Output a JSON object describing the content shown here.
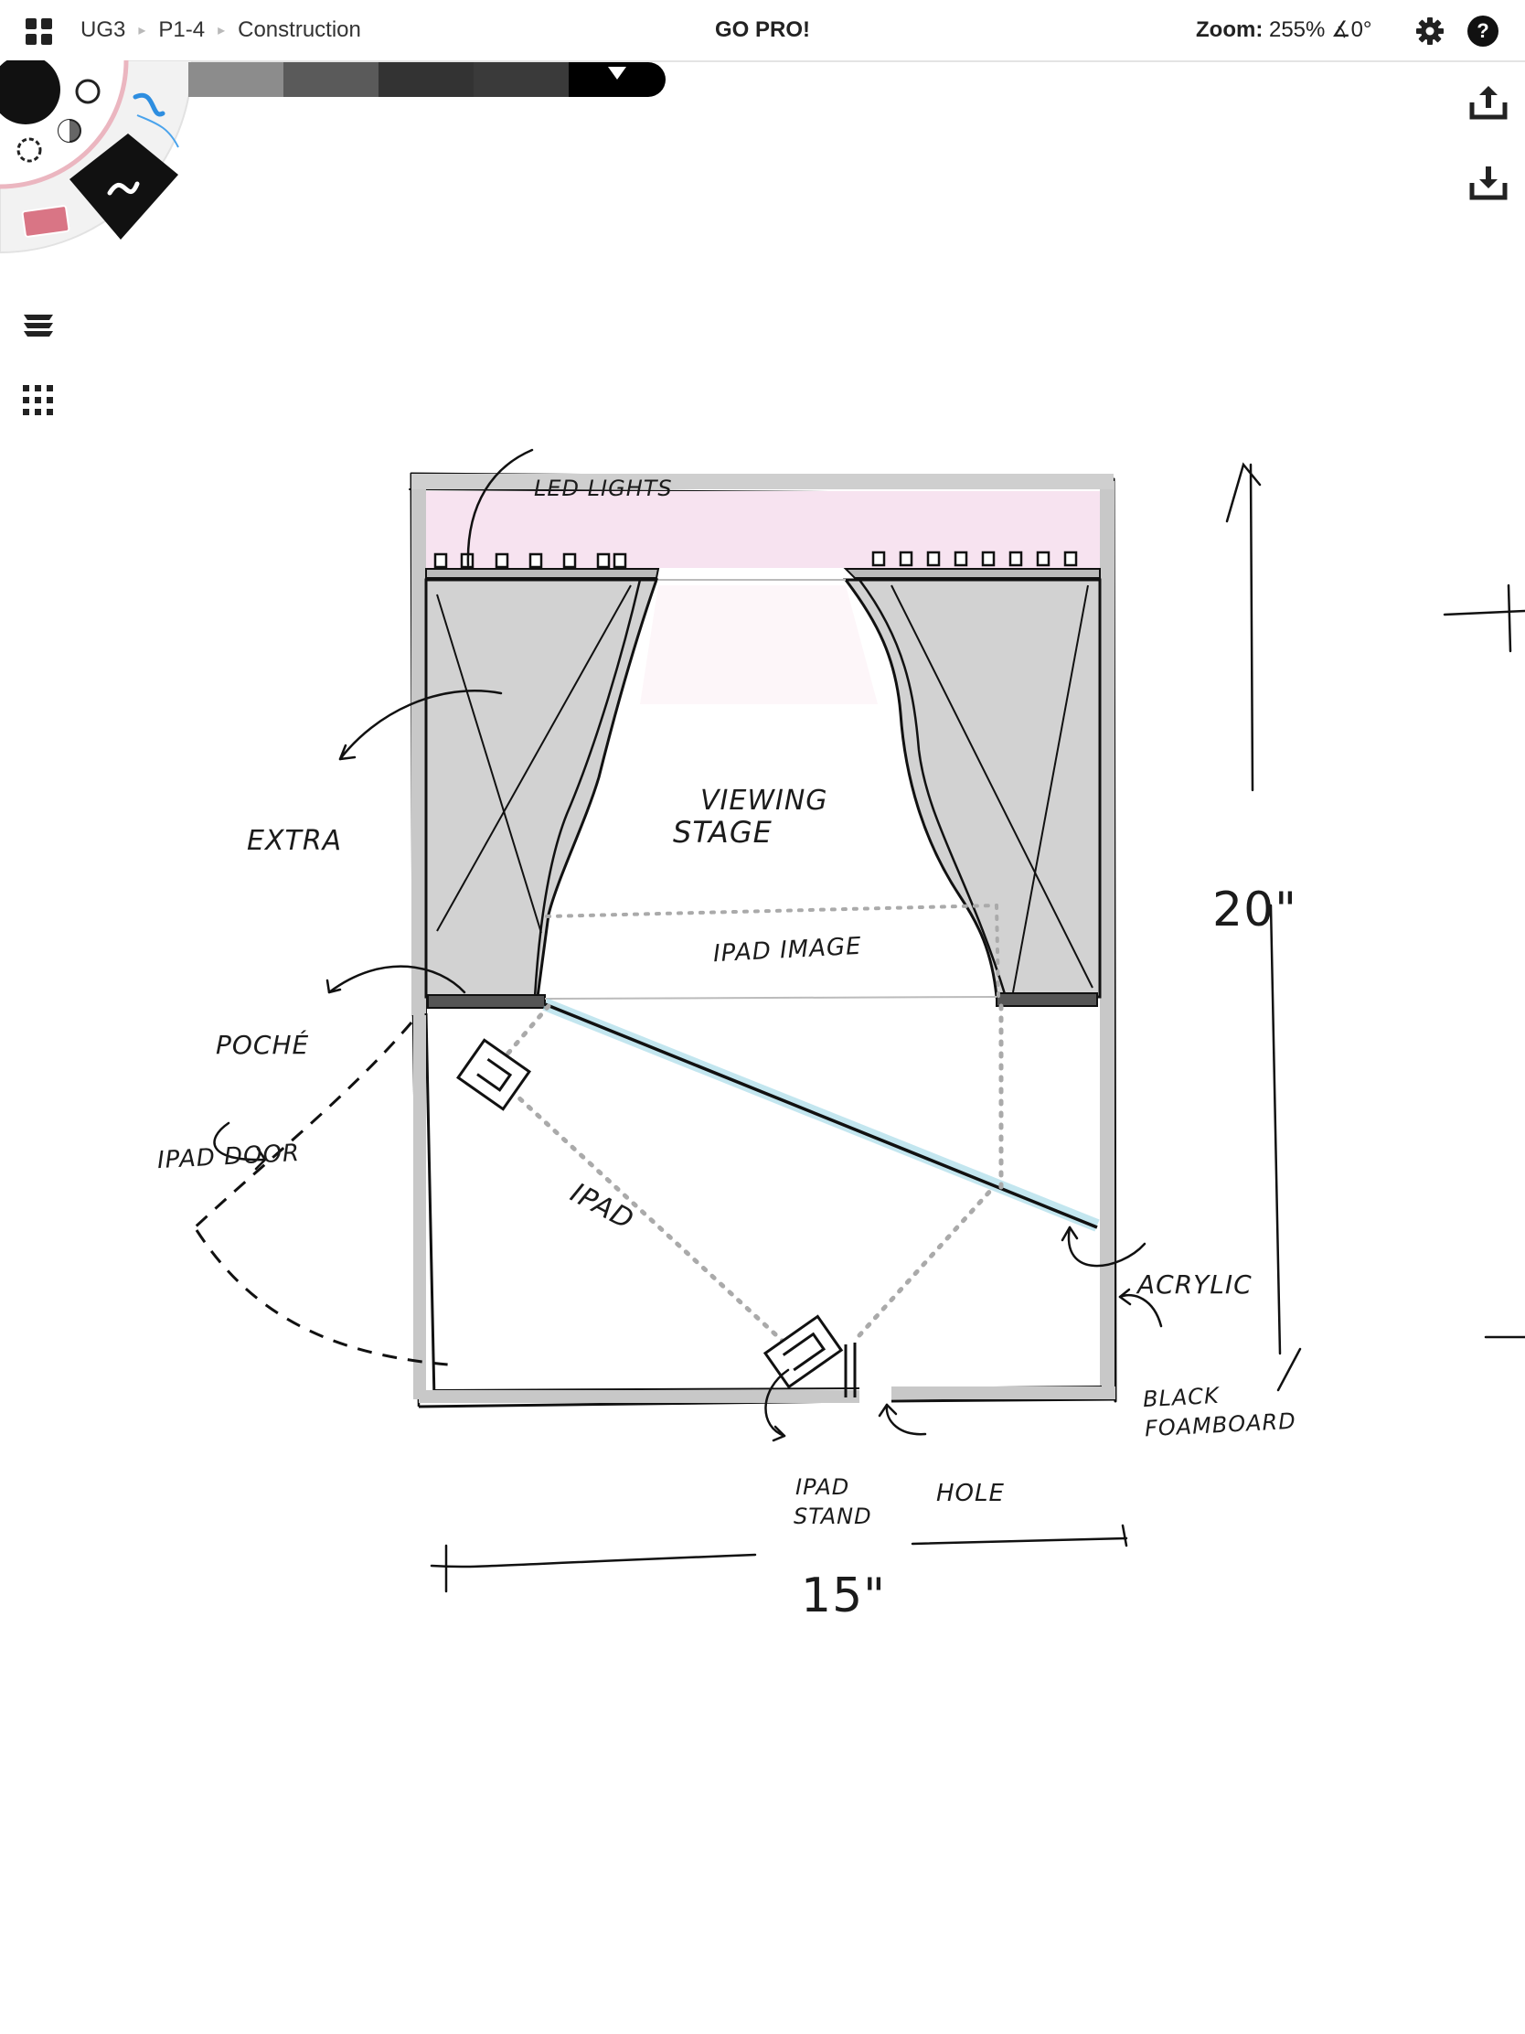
{
  "breadcrumb": {
    "items": [
      "UG3",
      "P1-4",
      "Construction"
    ]
  },
  "header": {
    "promo": "GO PRO!",
    "zoom_label": "Zoom:",
    "zoom_value": "255%",
    "rotation": "∡0°"
  },
  "palette": {
    "colors": [
      "#8c8c8c",
      "#5a5a5a",
      "#333333",
      "#3a3a3a",
      "#000000"
    ]
  },
  "tools": {
    "wheel_icons": [
      "brush-size-large",
      "brush-size-small",
      "pen-blue",
      "opacity",
      "lasso",
      "pen-black",
      "eraser-pink"
    ],
    "left_icons": [
      "layers-icon",
      "grid-icon"
    ],
    "right_icons": [
      "upload-icon",
      "download-icon"
    ]
  },
  "drawing": {
    "labels": {
      "led_lights": "LED LIGHTS",
      "viewing_stage_1": "VIEWING",
      "viewing_stage_2": "STAGE",
      "extra": "EXTRA",
      "ipad_image": "IPAD IMAGE",
      "poche": "POCHÉ",
      "ipad_door": "IPAD DOOR",
      "ipad": "IPAD",
      "acrylic": "ACRYLIC",
      "black_foamboard_1": "BLACK",
      "black_foamboard_2": "FOAMBOARD",
      "ipad_stand_1": "IPAD",
      "ipad_stand_2": "STAND",
      "hole": "HOLE",
      "height_dim": "20\"",
      "width_dim": "15\""
    }
  },
  "colors": {
    "box_fill": "#cfcfcf",
    "led_strip": "#f7e3f0",
    "acrylic_highlight": "#a9dce8"
  }
}
